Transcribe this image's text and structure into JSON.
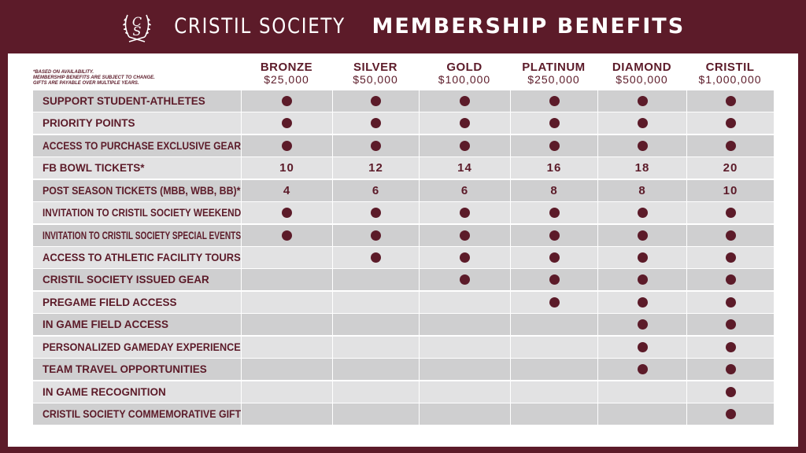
{
  "header": {
    "title_part1": "CRISTIL SOCIETY",
    "title_part2": "MEMBERSHIP BENEFITS",
    "logo_icon": "cs-laurel-logo-icon",
    "colors": {
      "maroon": "#5c1b29",
      "row_dark": "#cfcfd0",
      "row_light": "#e2e2e3"
    }
  },
  "note": {
    "line1": "*BASED ON AVAILABILITY.",
    "line2": "MEMBERSHIP BENEFITS ARE SUBJECT TO CHANGE.",
    "line3": "GIFTS ARE PAYABLE OVER MULTIPLE YEARS."
  },
  "tiers": [
    {
      "name": "BRONZE",
      "price": "$25,000"
    },
    {
      "name": "SILVER",
      "price": "$50,000"
    },
    {
      "name": "GOLD",
      "price": "$100,000"
    },
    {
      "name": "PLATINUM",
      "price": "$250,000"
    },
    {
      "name": "DIAMOND",
      "price": "$500,000"
    },
    {
      "name": "CRISTIL",
      "price": "$1,000,000"
    }
  ],
  "benefits": [
    {
      "label": "SUPPORT STUDENT-ATHLETES",
      "values": [
        "dot",
        "dot",
        "dot",
        "dot",
        "dot",
        "dot"
      ]
    },
    {
      "label": "PRIORITY POINTS",
      "values": [
        "dot",
        "dot",
        "dot",
        "dot",
        "dot",
        "dot"
      ]
    },
    {
      "label": "ACCESS TO PURCHASE EXCLUSIVE GEAR",
      "values": [
        "dot",
        "dot",
        "dot",
        "dot",
        "dot",
        "dot"
      ]
    },
    {
      "label": "FB BOWL TICKETS*",
      "values": [
        "10",
        "12",
        "14",
        "16",
        "18",
        "20"
      ]
    },
    {
      "label": "POST SEASON TICKETS (MBB, WBB, BB)*",
      "values": [
        "4",
        "6",
        "6",
        "8",
        "8",
        "10"
      ]
    },
    {
      "label": "INVITATION TO CRISTIL SOCIETY WEEKEND",
      "values": [
        "dot",
        "dot",
        "dot",
        "dot",
        "dot",
        "dot"
      ]
    },
    {
      "label": "INVITATION TO CRISTIL SOCIETY SPECIAL EVENTS",
      "values": [
        "dot",
        "dot",
        "dot",
        "dot",
        "dot",
        "dot"
      ]
    },
    {
      "label": "ACCESS TO ATHLETIC FACILITY TOURS",
      "values": [
        "",
        "dot",
        "dot",
        "dot",
        "dot",
        "dot"
      ]
    },
    {
      "label": "CRISTIL SOCIETY ISSUED GEAR",
      "values": [
        "",
        "",
        "dot",
        "dot",
        "dot",
        "dot"
      ]
    },
    {
      "label": "PREGAME FIELD ACCESS",
      "values": [
        "",
        "",
        "",
        "dot",
        "dot",
        "dot"
      ]
    },
    {
      "label": "IN GAME FIELD ACCESS",
      "values": [
        "",
        "",
        "",
        "",
        "dot",
        "dot"
      ]
    },
    {
      "label": "PERSONALIZED GAMEDAY EXPERIENCE",
      "values": [
        "",
        "",
        "",
        "",
        "dot",
        "dot"
      ]
    },
    {
      "label": "TEAM TRAVEL OPPORTUNITIES",
      "values": [
        "",
        "",
        "",
        "",
        "dot",
        "dot"
      ]
    },
    {
      "label": "IN GAME RECOGNITION",
      "values": [
        "",
        "",
        "",
        "",
        "",
        "dot"
      ]
    },
    {
      "label": "CRISTIL SOCIETY COMMEMORATIVE GIFT",
      "values": [
        "",
        "",
        "",
        "",
        "",
        "dot"
      ]
    }
  ]
}
